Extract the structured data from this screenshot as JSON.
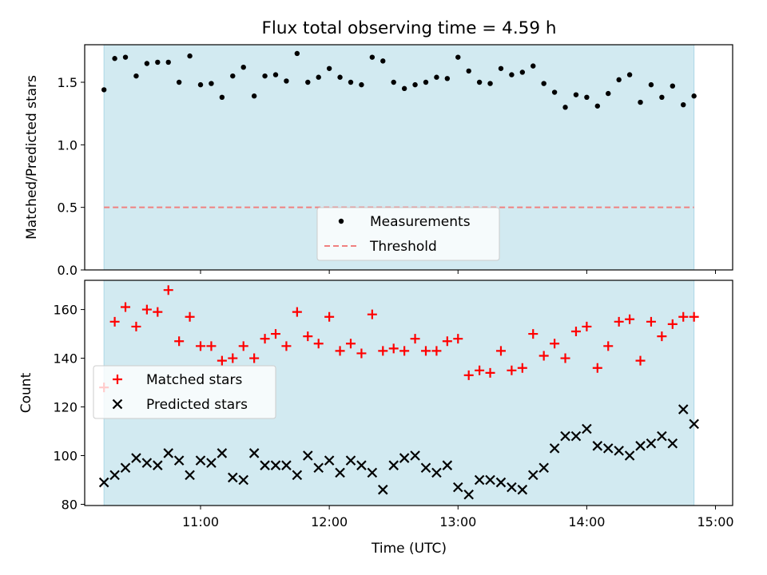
{
  "chart_data": [
    {
      "type": "scatter",
      "title": "Flux total observing time = 4.59 h",
      "xlabel": "",
      "ylabel": "Matched/Predicted stars",
      "xlim": [
        "10:06",
        "15:08"
      ],
      "ylim": [
        0.0,
        1.8
      ],
      "yticks": [
        0.0,
        0.5,
        1.0,
        1.5
      ],
      "ytick_labels": [
        "0.0",
        "0.5",
        "1.0",
        "1.5"
      ],
      "shaded_span": [
        "10:15",
        "14:50"
      ],
      "shade_color": "#add8e6",
      "threshold": 0.5,
      "legend": {
        "location": "lower center",
        "entries": [
          {
            "label": "Measurements",
            "marker": "dot",
            "color": "#000000"
          },
          {
            "label": "Threshold",
            "marker": "dashed-line",
            "color": "#f08080"
          }
        ]
      },
      "series": [
        {
          "name": "Measurements",
          "color": "#000000",
          "x": [
            "10:15",
            "10:20",
            "10:25",
            "10:30",
            "10:35",
            "10:40",
            "10:45",
            "10:50",
            "10:55",
            "11:00",
            "11:05",
            "11:10",
            "11:15",
            "11:20",
            "11:25",
            "11:30",
            "11:35",
            "11:40",
            "11:45",
            "11:50",
            "11:55",
            "12:00",
            "12:05",
            "12:10",
            "12:15",
            "12:20",
            "12:25",
            "12:30",
            "12:35",
            "12:40",
            "12:45",
            "12:50",
            "12:55",
            "13:00",
            "13:05",
            "13:10",
            "13:15",
            "13:20",
            "13:25",
            "13:30",
            "13:35",
            "13:40",
            "13:45",
            "13:50",
            "13:55",
            "14:00",
            "14:05",
            "14:10",
            "14:15",
            "14:20",
            "14:25",
            "14:30",
            "14:35",
            "14:40",
            "14:45",
            "14:50"
          ],
          "y": [
            1.44,
            1.69,
            1.7,
            1.55,
            1.65,
            1.66,
            1.66,
            1.5,
            1.71,
            1.48,
            1.49,
            1.38,
            1.55,
            1.62,
            1.39,
            1.55,
            1.56,
            1.51,
            1.73,
            1.5,
            1.54,
            1.61,
            1.54,
            1.5,
            1.48,
            1.7,
            1.67,
            1.5,
            1.45,
            1.48,
            1.5,
            1.54,
            1.53,
            1.7,
            1.59,
            1.5,
            1.49,
            1.61,
            1.56,
            1.58,
            1.63,
            1.49,
            1.42,
            1.3,
            1.4,
            1.38,
            1.31,
            1.41,
            1.52,
            1.56,
            1.34,
            1.48,
            1.38,
            1.47,
            1.32,
            1.39
          ]
        }
      ]
    },
    {
      "type": "scatter",
      "title": "",
      "xlabel": "Time (UTC)",
      "ylabel": "Count",
      "xlim": [
        "10:06",
        "15:08"
      ],
      "xticks": [
        "11:00",
        "12:00",
        "13:00",
        "14:00",
        "15:00"
      ],
      "ylim": [
        79.5,
        172
      ],
      "yticks": [
        80,
        100,
        120,
        140,
        160
      ],
      "shaded_span": [
        "10:15",
        "14:50"
      ],
      "shade_color": "#add8e6",
      "legend": {
        "location": "center left",
        "entries": [
          {
            "label": "Matched stars",
            "marker": "plus",
            "color": "#ff0000"
          },
          {
            "label": "Predicted stars",
            "marker": "x",
            "color": "#000000"
          }
        ]
      },
      "series": [
        {
          "name": "Matched stars",
          "marker": "plus",
          "color": "#ff0000",
          "x": [
            "10:15",
            "10:20",
            "10:25",
            "10:30",
            "10:35",
            "10:40",
            "10:45",
            "10:50",
            "10:55",
            "11:00",
            "11:05",
            "11:10",
            "11:15",
            "11:20",
            "11:25",
            "11:30",
            "11:35",
            "11:40",
            "11:45",
            "11:50",
            "11:55",
            "12:00",
            "12:05",
            "12:10",
            "12:15",
            "12:20",
            "12:25",
            "12:30",
            "12:35",
            "12:40",
            "12:45",
            "12:50",
            "12:55",
            "13:00",
            "13:05",
            "13:10",
            "13:15",
            "13:20",
            "13:25",
            "13:30",
            "13:35",
            "13:40",
            "13:45",
            "13:50",
            "13:55",
            "14:00",
            "14:05",
            "14:10",
            "14:15",
            "14:20",
            "14:25",
            "14:30",
            "14:35",
            "14:40",
            "14:45",
            "14:50"
          ],
          "y": [
            128,
            155,
            161,
            153,
            160,
            159,
            168,
            147,
            157,
            145,
            145,
            139,
            140,
            145,
            140,
            148,
            150,
            145,
            159,
            149,
            146,
            157,
            143,
            146,
            142,
            158,
            143,
            144,
            143,
            148,
            143,
            143,
            147,
            148,
            133,
            135,
            134,
            143,
            135,
            136,
            150,
            141,
            146,
            140,
            151,
            153,
            136,
            145,
            155,
            156,
            139,
            155,
            149,
            154,
            157,
            157
          ]
        },
        {
          "name": "Predicted stars",
          "marker": "x",
          "color": "#000000",
          "x": [
            "10:15",
            "10:20",
            "10:25",
            "10:30",
            "10:35",
            "10:40",
            "10:45",
            "10:50",
            "10:55",
            "11:00",
            "11:05",
            "11:10",
            "11:15",
            "11:20",
            "11:25",
            "11:30",
            "11:35",
            "11:40",
            "11:45",
            "11:50",
            "11:55",
            "12:00",
            "12:05",
            "12:10",
            "12:15",
            "12:20",
            "12:25",
            "12:30",
            "12:35",
            "12:40",
            "12:45",
            "12:50",
            "12:55",
            "13:00",
            "13:05",
            "13:10",
            "13:15",
            "13:20",
            "13:25",
            "13:30",
            "13:35",
            "13:40",
            "13:45",
            "13:50",
            "13:55",
            "14:00",
            "14:05",
            "14:10",
            "14:15",
            "14:20",
            "14:25",
            "14:30",
            "14:35",
            "14:40",
            "14:45",
            "14:50"
          ],
          "y": [
            89,
            92,
            95,
            99,
            97,
            96,
            101,
            98,
            92,
            98,
            97,
            101,
            91,
            90,
            101,
            96,
            96,
            96,
            92,
            100,
            95,
            98,
            93,
            98,
            96,
            93,
            86,
            96,
            99,
            100,
            95,
            93,
            96,
            87,
            84,
            90,
            90,
            89,
            87,
            86,
            92,
            95,
            103,
            108,
            108,
            111,
            104,
            103,
            102,
            100,
            104,
            105,
            108,
            105,
            119,
            113
          ]
        }
      ]
    }
  ]
}
